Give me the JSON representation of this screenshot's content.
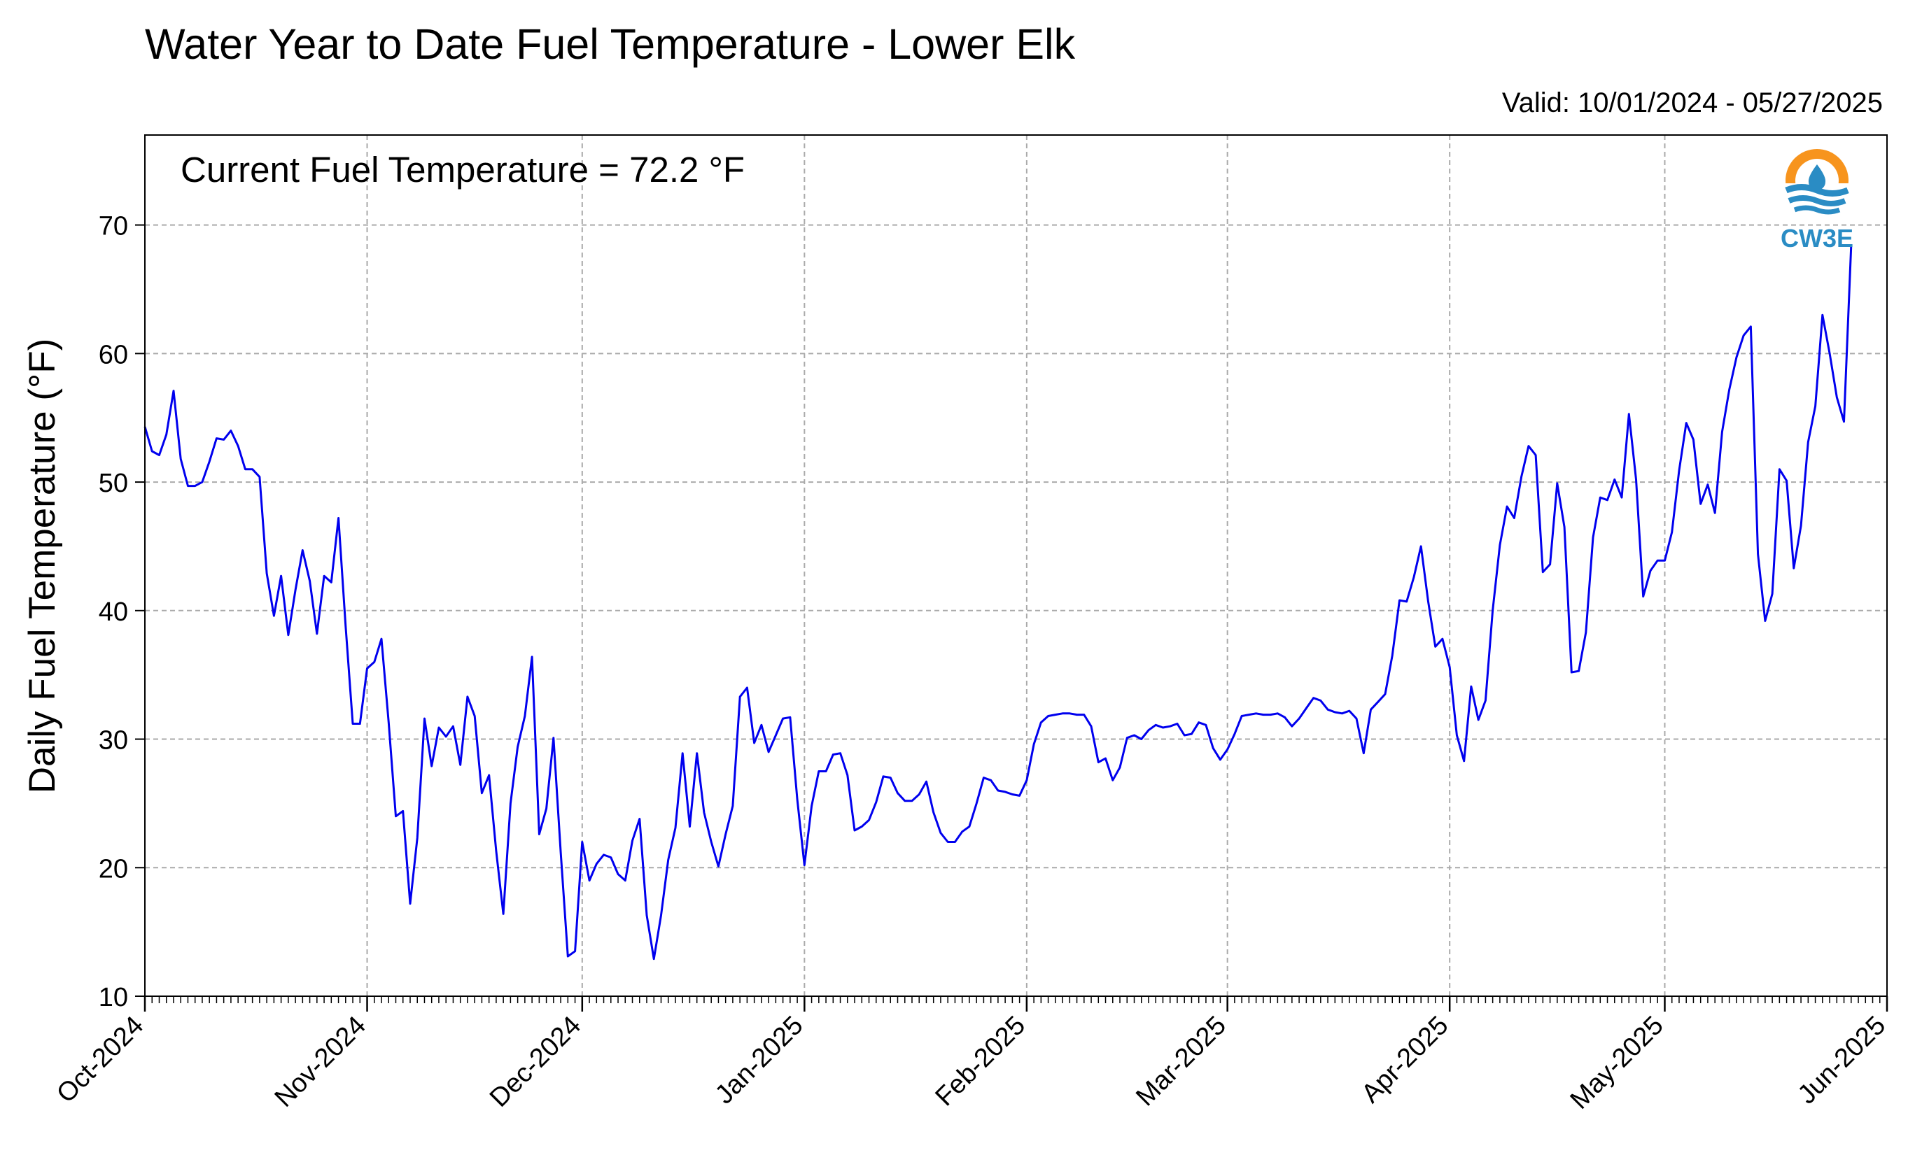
{
  "chart_data": {
    "type": "line",
    "title": "Water Year to Date Fuel Temperature - Lower Elk",
    "subtitle": "Valid: 10/01/2024 - 05/27/2025",
    "annotation": "Current Fuel Temperature = 72.2 °F",
    "xlabel": "",
    "ylabel": "Daily Fuel Temperature (°F)",
    "xlim": [
      "2024-10-01",
      "2025-06-01"
    ],
    "ylim": [
      10,
      77
    ],
    "yticks": [
      10,
      20,
      30,
      40,
      50,
      60,
      70
    ],
    "xticks": [
      {
        "date": "2024-10-01",
        "label": "Oct-2024"
      },
      {
        "date": "2024-11-01",
        "label": "Nov-2024"
      },
      {
        "date": "2024-12-01",
        "label": "Dec-2024"
      },
      {
        "date": "2025-01-01",
        "label": "Jan-2025"
      },
      {
        "date": "2025-02-01",
        "label": "Feb-2025"
      },
      {
        "date": "2025-03-01",
        "label": "Mar-2025"
      },
      {
        "date": "2025-04-01",
        "label": "Apr-2025"
      },
      {
        "date": "2025-05-01",
        "label": "May-2025"
      },
      {
        "date": "2025-06-01",
        "label": "Jun-2025"
      }
    ],
    "grid": true,
    "line_color": "#0000ee",
    "series": [
      {
        "start_date": "2024-10-01",
        "values": [
          54.3,
          52.4,
          52.1,
          53.7,
          57.1,
          51.8,
          49.7,
          49.7,
          50.0,
          51.6,
          53.4,
          53.3,
          54.0,
          52.8,
          51.0,
          51.0,
          50.4,
          42.9,
          39.6,
          42.7,
          38.1,
          41.6,
          44.7,
          42.3,
          38.2,
          42.7,
          42.2,
          47.2,
          38.8,
          31.2,
          31.2,
          35.5,
          36.0,
          37.8,
          31.3,
          24.0,
          24.4,
          17.2,
          22.3,
          31.6,
          27.9,
          30.9,
          30.2,
          31.0,
          28.0,
          33.3,
          31.8,
          25.8,
          27.2,
          21.3,
          16.4,
          25.0,
          29.4,
          31.8,
          36.4,
          22.6,
          24.6,
          30.1,
          21.2,
          13.1,
          13.5,
          22.0,
          19.0,
          20.3,
          21.0,
          20.8,
          19.5,
          19.0,
          22.1,
          23.8,
          16.3,
          12.9,
          16.3,
          20.6,
          23.1,
          28.9,
          23.2,
          28.9,
          24.3,
          22.0,
          20.1,
          22.6,
          24.8,
          33.3,
          34.0,
          29.7,
          31.1,
          29.0,
          30.3,
          31.6,
          31.7,
          25.3,
          20.2,
          24.8,
          27.5,
          27.5,
          28.8,
          28.9,
          27.2,
          22.9,
          23.2,
          23.7,
          25.1,
          27.1,
          27.0,
          25.8,
          25.2,
          25.2,
          25.7,
          26.7,
          24.3,
          22.7,
          22.0,
          22.0,
          22.8,
          23.2,
          25.0,
          27.0,
          26.8,
          26.0,
          25.9,
          25.7,
          25.6,
          26.8,
          29.6,
          31.3,
          31.8,
          31.9,
          32.0,
          32.0,
          31.9,
          31.9,
          31.0,
          28.2,
          28.5,
          26.8,
          27.8,
          30.1,
          30.3,
          30.0,
          30.7,
          31.1,
          30.9,
          31.0,
          31.2,
          30.3,
          30.4,
          31.3,
          31.1,
          29.3,
          28.4,
          29.2,
          30.4,
          31.8,
          31.9,
          32.0,
          31.9,
          31.9,
          32.0,
          31.7,
          31.0,
          31.6,
          32.4,
          33.2,
          33.0,
          32.3,
          32.1,
          32.0,
          32.2,
          31.6,
          28.9,
          32.3,
          32.9,
          33.5,
          36.5,
          40.8,
          40.7,
          42.6,
          45.0,
          40.7,
          37.2,
          37.8,
          35.6,
          30.3,
          28.3,
          34.1,
          31.5,
          33.0,
          40.0,
          45.1,
          48.1,
          47.2,
          50.4,
          52.8,
          52.1,
          43.0,
          43.6,
          49.9,
          46.5,
          35.2,
          35.3,
          38.3,
          45.7,
          48.8,
          48.6,
          50.2,
          48.8,
          55.3,
          50.2,
          41.1,
          43.1,
          43.9,
          43.9,
          46.1,
          50.9,
          54.6,
          53.3,
          48.3,
          49.8,
          47.6,
          53.9,
          57.2,
          59.7,
          61.4,
          62.1,
          44.4,
          39.2,
          41.3,
          51.0,
          50.1,
          43.3,
          46.6,
          53.1,
          55.9,
          63.0,
          60.0,
          56.6,
          54.7,
          68.4
        ]
      }
    ]
  },
  "logo": {
    "text": "CW3E",
    "colors": {
      "orange": "#f7941d",
      "blue": "#2a8cc4",
      "dark_blue": "#1a6fa8"
    }
  }
}
